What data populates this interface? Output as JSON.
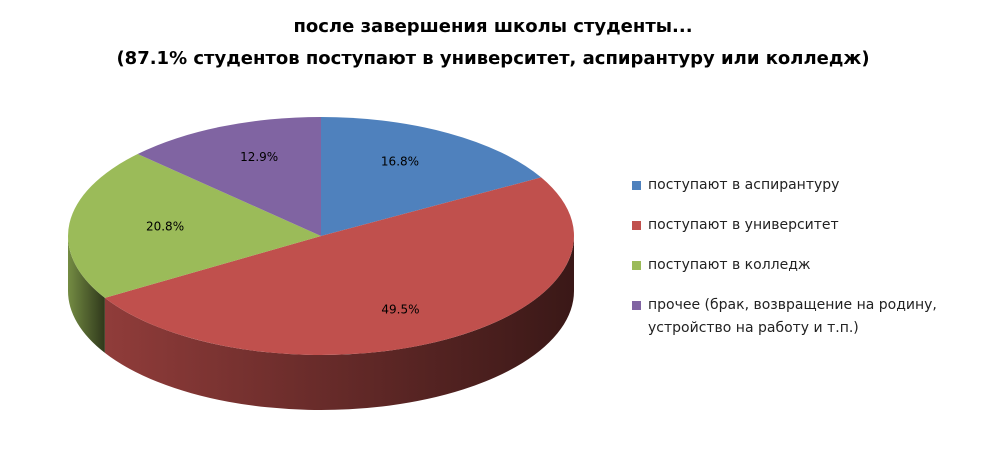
{
  "chart_data": {
    "type": "pie",
    "title": "после завершения школы студенты...",
    "subtitle": "(87.1% студентов поступают в университет, аспирантуру или колледж)",
    "categories": [
      "поступают в аспирантуру",
      "поступают в университет",
      "поступают в колледж",
      "прочее (брак, возвращение на родину, устройство на работу и т.п.)"
    ],
    "values": [
      16.8,
      49.5,
      20.8,
      12.9
    ],
    "value_labels": [
      "16.8%",
      "49.5%",
      "20.8%",
      "12.9%"
    ],
    "colors": [
      "#4f81bd",
      "#c0504d",
      "#9bbb59",
      "#8064a2"
    ],
    "legend": "right"
  }
}
